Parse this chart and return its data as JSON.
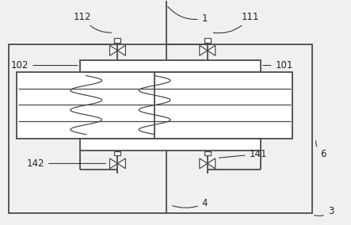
{
  "bg_color": "#f0f0f0",
  "line_color": "#4a4a4a",
  "lw": 1.3,
  "thin_lw": 0.9,
  "font_size": 8.5,
  "label_color": "#222222",
  "figsize": [
    4.43,
    2.84
  ],
  "dpi": 100
}
